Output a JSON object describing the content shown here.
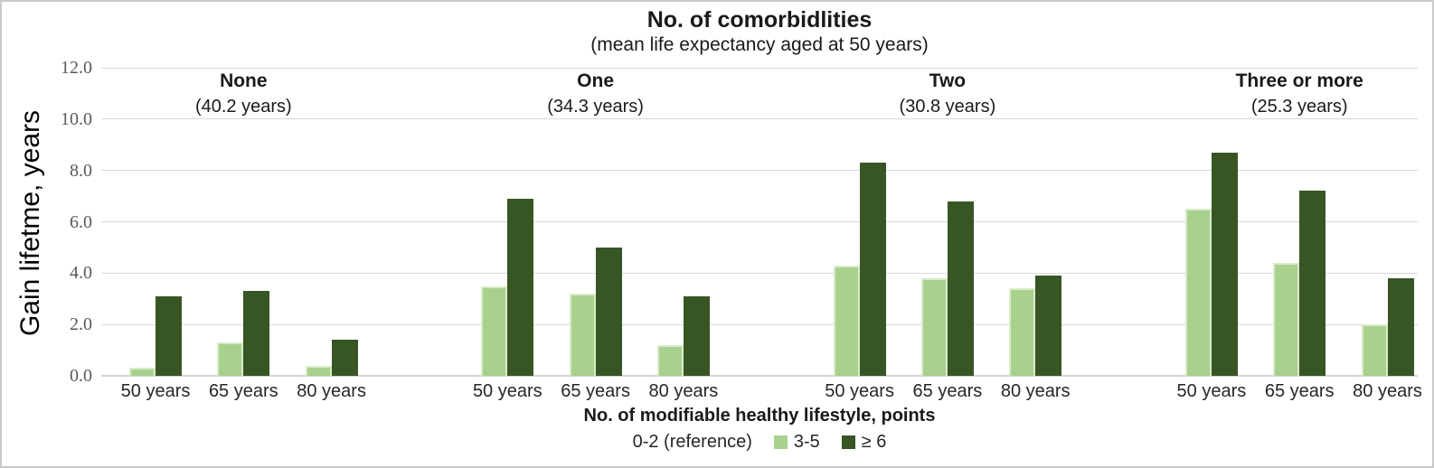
{
  "chart_data": {
    "type": "bar",
    "title": "No. of comorbidlities",
    "subtitle": "(mean life expectancy aged at 50 years)",
    "ylabel": "Gain lifetme, years",
    "xlabel": "No. of modifiable healthy lifestyle, points",
    "ylim": [
      0,
      12
    ],
    "y_tick_step": 2,
    "y_tick_labels": [
      "0.0",
      "2.0",
      "4.0",
      "6.0",
      "8.0",
      "10.0",
      "12.0"
    ],
    "grid": "horizontal",
    "legend_position": "bottom",
    "legend": {
      "reference_label": "0-2 (reference)",
      "items": [
        {
          "label": "3-5",
          "color": "#a9d18e"
        },
        {
          "label": "≥ 6",
          "color": "#375623"
        }
      ]
    },
    "series_colors": [
      "#a9d18e",
      "#375623"
    ],
    "categories": [
      "50 years",
      "65 years",
      "80 years"
    ],
    "groups": [
      {
        "label": "None",
        "sublabel": "(40.2 years)",
        "series": [
          {
            "name": "3-5",
            "values": [
              0.3,
              1.3,
              0.4
            ]
          },
          {
            "name": "≥ 6",
            "values": [
              3.1,
              3.3,
              1.4
            ]
          }
        ]
      },
      {
        "label": "One",
        "sublabel": "(34.3 years)",
        "series": [
          {
            "name": "3-5",
            "values": [
              3.5,
              3.2,
              1.2
            ]
          },
          {
            "name": "≥ 6",
            "values": [
              6.9,
              5.0,
              3.1
            ]
          }
        ]
      },
      {
        "label": "Two",
        "sublabel": "(30.8 years)",
        "series": [
          {
            "name": "3-5",
            "values": [
              4.3,
              3.8,
              3.4
            ]
          },
          {
            "name": "≥ 6",
            "values": [
              8.3,
              6.8,
              3.9
            ]
          }
        ]
      },
      {
        "label": "Three or more",
        "sublabel": "(25.3 years)",
        "series": [
          {
            "name": "3-5",
            "values": [
              6.5,
              4.4,
              2.0
            ]
          },
          {
            "name": "≥ 6",
            "values": [
              8.7,
              7.2,
              3.8
            ]
          }
        ]
      }
    ]
  }
}
